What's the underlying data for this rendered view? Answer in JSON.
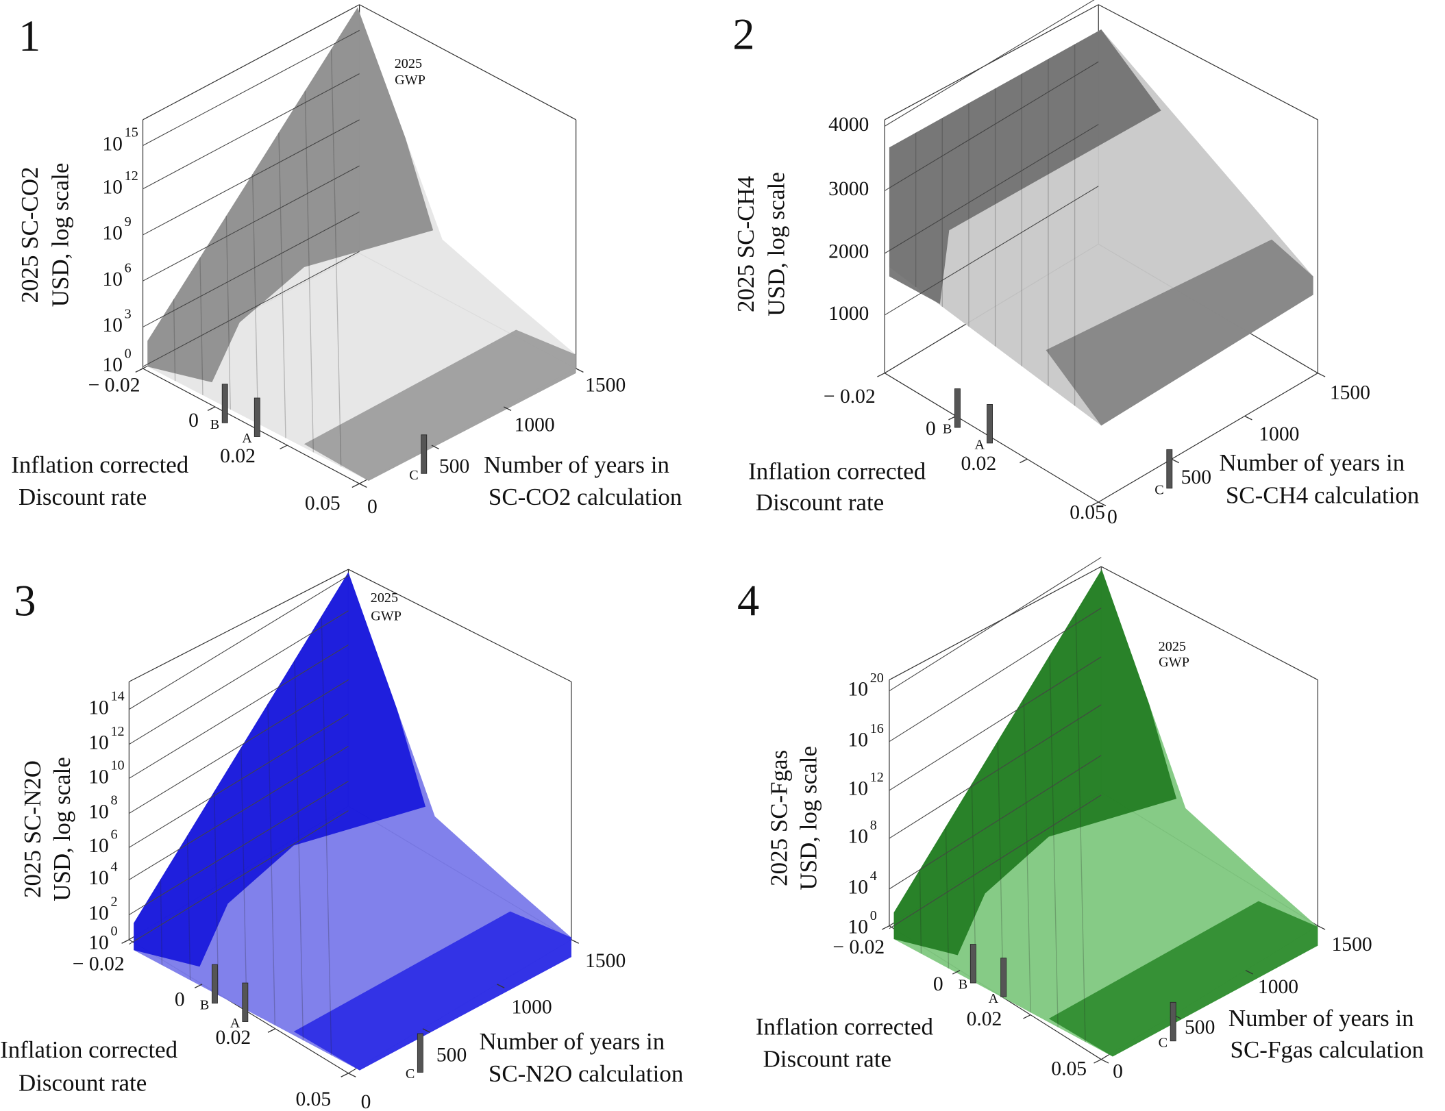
{
  "chart_data": [
    {
      "type": "surface",
      "panel_label": "1",
      "value_axis_label": [
        "2025 SC-CO2",
        "USD, log scale"
      ],
      "rate_axis_label": [
        "Inflation corrected",
        "Discount rate"
      ],
      "years_axis_label": [
        "Number of years in",
        "SC-CO2 calculation"
      ],
      "yticks": [
        {
          "value": 1000000000000000.0,
          "label": "10",
          "exponent": "15"
        },
        {
          "value": 1000000000000.0,
          "label": "10",
          "exponent": "12"
        },
        {
          "value": 1000000000.0,
          "label": "10",
          "exponent": "9"
        },
        {
          "value": 1000000.0,
          "label": "10",
          "exponent": "6"
        },
        {
          "value": 1000.0,
          "label": "10",
          "exponent": "3"
        },
        {
          "value": 1,
          "label": "10",
          "exponent": "0"
        }
      ],
      "log_scale": true,
      "rate_ticks": [
        {
          "value": -0.02,
          "label": "− 0.02"
        },
        0,
        0.02,
        0.05
      ],
      "years_ticks": [
        0,
        500,
        1000,
        1500
      ],
      "markers": [
        "B",
        "A",
        "C"
      ],
      "annotation": [
        "2025",
        "GWP"
      ],
      "surface_colors": [
        "#e6e6e6",
        "#8a8a8a",
        "#9a9a9a"
      ]
    },
    {
      "type": "surface",
      "panel_label": "2",
      "value_axis_label": [
        "2025 SC-CH4",
        "USD, log scale"
      ],
      "rate_axis_label": [
        "Inflation corrected",
        "Discount rate"
      ],
      "years_axis_label": [
        "Number of years in",
        "SC-CH4 calculation"
      ],
      "yticks": [
        4000,
        3000,
        2000,
        1000
      ],
      "log_scale": true,
      "rate_ticks": [
        {
          "value": -0.02,
          "label": "− 0.02"
        },
        0,
        0.02,
        0.05
      ],
      "years_ticks": [
        0,
        500,
        1000,
        1500
      ],
      "markers": [
        "B",
        "A",
        "C"
      ],
      "surface_colors": [
        "#c8c8c8",
        "#6e6e6e",
        "#828282"
      ]
    },
    {
      "type": "surface",
      "panel_label": "3",
      "value_axis_label": [
        "2025 SC-N2O",
        "USD, log scale"
      ],
      "rate_axis_label": [
        "Inflation corrected",
        "Discount rate"
      ],
      "years_axis_label": [
        "Number of years in",
        "SC-N2O calculation"
      ],
      "yticks": [
        {
          "value": 100000000000000.0,
          "label": "10",
          "exponent": "14"
        },
        {
          "value": 1000000000000.0,
          "label": "10",
          "exponent": "12"
        },
        {
          "value": 10000000000.0,
          "label": "10",
          "exponent": "10"
        },
        {
          "value": 100000000.0,
          "label": "10",
          "exponent": "8"
        },
        {
          "value": 1000000.0,
          "label": "10",
          "exponent": "6"
        },
        {
          "value": 10000.0,
          "label": "10",
          "exponent": "4"
        },
        {
          "value": 100.0,
          "label": "10",
          "exponent": "2"
        },
        {
          "value": 1,
          "label": "10",
          "exponent": "0"
        }
      ],
      "log_scale": true,
      "rate_ticks": [
        {
          "value": -0.02,
          "label": "− 0.02"
        },
        0,
        0.02,
        0.05
      ],
      "years_ticks": [
        0,
        500,
        1000,
        1500
      ],
      "markers": [
        "B",
        "A",
        "C"
      ],
      "annotation": [
        "2025",
        "GWP"
      ],
      "surface_colors": [
        "#7a7aea",
        "#1414dc",
        "#2a2ae6"
      ]
    },
    {
      "type": "surface",
      "panel_label": "4",
      "value_axis_label": [
        "2025 SC-Fgas",
        "USD, log scale"
      ],
      "rate_axis_label": [
        "Inflation corrected",
        "Discount rate"
      ],
      "years_axis_label": [
        "Number of years in",
        "SC-Fgas calculation"
      ],
      "yticks": [
        {
          "value": 1e+20,
          "label": "10",
          "exponent": "20"
        },
        {
          "value": 1e+16,
          "label": "10",
          "exponent": "16"
        },
        {
          "value": 1000000000000.0,
          "label": "10",
          "exponent": "12"
        },
        {
          "value": 100000000.0,
          "label": "10",
          "exponent": "8"
        },
        {
          "value": 10000.0,
          "label": "10",
          "exponent": "4"
        },
        {
          "value": 1,
          "label": "10",
          "exponent": "0"
        }
      ],
      "log_scale": true,
      "rate_ticks": [
        {
          "value": -0.02,
          "label": "− 0.02"
        },
        0,
        0.02,
        0.05
      ],
      "years_ticks": [
        0,
        500,
        1000,
        1500
      ],
      "markers": [
        "B",
        "A",
        "C"
      ],
      "annotation": [
        "2025",
        "GWP"
      ],
      "surface_colors": [
        "#80c880",
        "#1f7a1f",
        "#2e8b2e"
      ]
    }
  ]
}
